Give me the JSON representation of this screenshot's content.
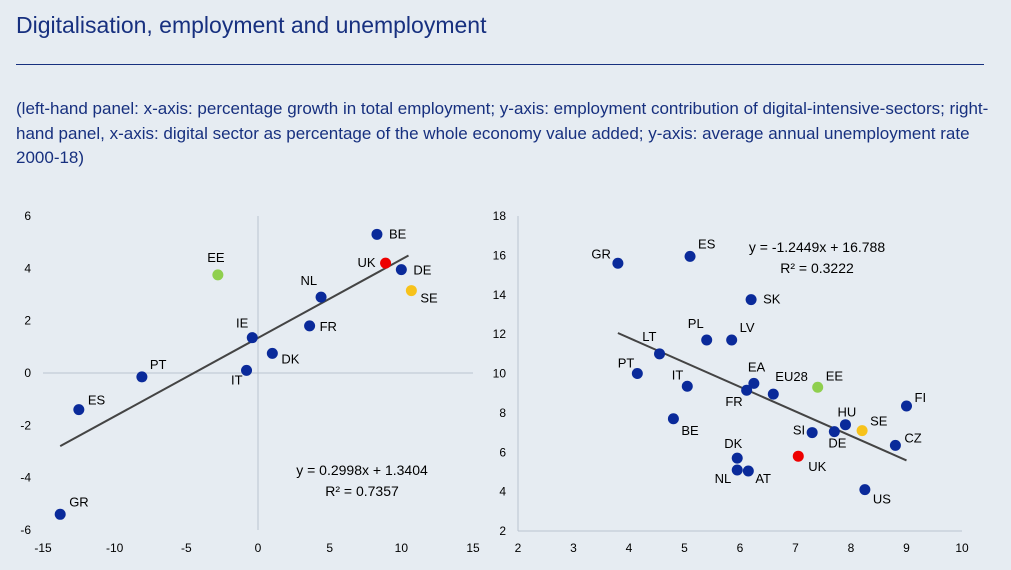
{
  "header": {
    "title": "Digitalisation, employment and unemployment",
    "subtitle": "(left-hand panel: x-axis: percentage growth in total employment; y-axis: employment contribution of digital-intensive-sectors; right-hand panel, x-axis: digital sector as percentage of the whole economy value added; y-axis: average annual unemployment rate 2000-18)"
  },
  "colors": {
    "point": "#0a2a9a",
    "uk": "#ee0000",
    "ee": "#8fcf4e",
    "se": "#f7c21b",
    "trend": "#444444",
    "axis": "#b9c3d0"
  },
  "chart_data": [
    {
      "type": "scatter",
      "title": "",
      "xlabel": "",
      "ylabel": "",
      "xlim": [
        -15,
        15
      ],
      "ylim": [
        -6,
        6
      ],
      "xticks": [
        -15,
        -10,
        -5,
        0,
        5,
        10,
        15
      ],
      "yticks": [
        -6,
        -4,
        -2,
        0,
        2,
        4,
        6
      ],
      "grid": false,
      "points": [
        {
          "label": "BE",
          "x": 8.3,
          "y": 5.3,
          "highlight": "none"
        },
        {
          "label": "UK",
          "x": 8.9,
          "y": 4.2,
          "highlight": "uk"
        },
        {
          "label": "DE",
          "x": 10.0,
          "y": 3.95,
          "highlight": "none"
        },
        {
          "label": "SE",
          "x": 10.7,
          "y": 3.15,
          "highlight": "se"
        },
        {
          "label": "EE",
          "x": -2.8,
          "y": 3.75,
          "highlight": "ee"
        },
        {
          "label": "NL",
          "x": 4.4,
          "y": 2.9,
          "highlight": "none"
        },
        {
          "label": "FR",
          "x": 3.6,
          "y": 1.8,
          "highlight": "none"
        },
        {
          "label": "IE",
          "x": -0.4,
          "y": 1.35,
          "highlight": "none"
        },
        {
          "label": "DK",
          "x": 1.0,
          "y": 0.75,
          "highlight": "none"
        },
        {
          "label": "IT",
          "x": -0.8,
          "y": 0.1,
          "highlight": "none"
        },
        {
          "label": "PT",
          "x": -8.1,
          "y": -0.15,
          "highlight": "none"
        },
        {
          "label": "ES",
          "x": -12.5,
          "y": -1.4,
          "highlight": "none"
        },
        {
          "label": "GR",
          "x": -13.8,
          "y": -5.4,
          "highlight": "none"
        }
      ],
      "trendline": {
        "slope": 0.2998,
        "intercept": 1.3404,
        "x_range": [
          -13.8,
          10.5
        ]
      },
      "annotations": [
        "y = 0.2998x + 1.3404",
        "R² = 0.7357"
      ]
    },
    {
      "type": "scatter",
      "title": "",
      "xlabel": "",
      "ylabel": "",
      "xlim": [
        2,
        10
      ],
      "ylim": [
        2,
        18
      ],
      "xticks": [
        2,
        3,
        4,
        5,
        6,
        7,
        8,
        9,
        10
      ],
      "yticks": [
        2,
        4,
        6,
        8,
        10,
        12,
        14,
        16,
        18
      ],
      "grid": false,
      "points": [
        {
          "label": "GR",
          "x": 3.8,
          "y": 15.6,
          "highlight": "none"
        },
        {
          "label": "ES",
          "x": 5.1,
          "y": 15.95,
          "highlight": "none"
        },
        {
          "label": "SK",
          "x": 6.2,
          "y": 13.75,
          "highlight": "none"
        },
        {
          "label": "PL",
          "x": 5.4,
          "y": 11.7,
          "highlight": "none"
        },
        {
          "label": "LV",
          "x": 5.85,
          "y": 11.7,
          "highlight": "none"
        },
        {
          "label": "LT",
          "x": 4.55,
          "y": 11.0,
          "highlight": "none"
        },
        {
          "label": "PT",
          "x": 4.15,
          "y": 10.0,
          "highlight": "none"
        },
        {
          "label": "IT",
          "x": 5.05,
          "y": 9.35,
          "highlight": "none"
        },
        {
          "label": "EA",
          "x": 6.25,
          "y": 9.5,
          "highlight": "none"
        },
        {
          "label": "FR",
          "x": 6.12,
          "y": 9.15,
          "highlight": "none"
        },
        {
          "label": "EU28",
          "x": 6.6,
          "y": 8.95,
          "highlight": "none"
        },
        {
          "label": "EE",
          "x": 7.4,
          "y": 9.3,
          "highlight": "ee"
        },
        {
          "label": "BE",
          "x": 4.8,
          "y": 7.7,
          "highlight": "none"
        },
        {
          "label": "FI",
          "x": 9.0,
          "y": 8.35,
          "highlight": "none"
        },
        {
          "label": "HU",
          "x": 7.9,
          "y": 7.4,
          "highlight": "none"
        },
        {
          "label": "SE",
          "x": 8.2,
          "y": 7.1,
          "highlight": "se"
        },
        {
          "label": "SI",
          "x": 7.3,
          "y": 7.0,
          "highlight": "none"
        },
        {
          "label": "DE",
          "x": 7.7,
          "y": 7.05,
          "highlight": "none"
        },
        {
          "label": "CZ",
          "x": 8.8,
          "y": 6.35,
          "highlight": "none"
        },
        {
          "label": "DK",
          "x": 5.95,
          "y": 5.7,
          "highlight": "none"
        },
        {
          "label": "UK",
          "x": 7.05,
          "y": 5.8,
          "highlight": "uk"
        },
        {
          "label": "NL",
          "x": 5.95,
          "y": 5.1,
          "highlight": "none"
        },
        {
          "label": "AT",
          "x": 6.15,
          "y": 5.05,
          "highlight": "none"
        },
        {
          "label": "US",
          "x": 8.25,
          "y": 4.1,
          "highlight": "none"
        }
      ],
      "trendline": {
        "slope": -1.2449,
        "intercept": 16.788,
        "x_range": [
          3.8,
          9.0
        ]
      },
      "annotations": [
        "y = -1.2449x + 16.788",
        "R² = 0.3222"
      ]
    }
  ]
}
